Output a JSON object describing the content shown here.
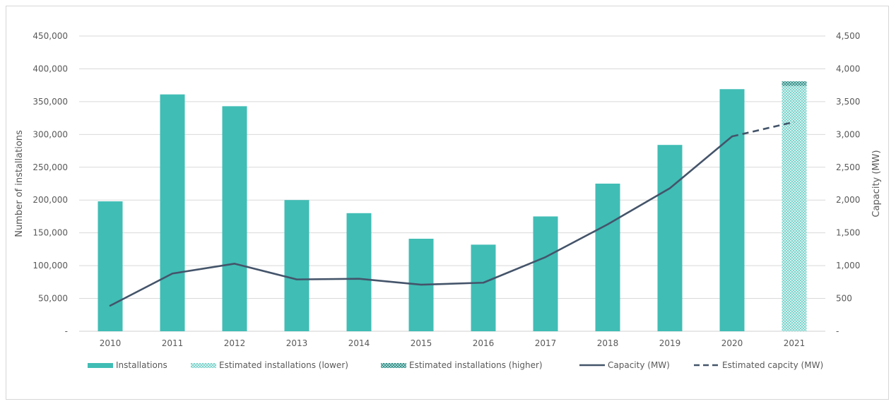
{
  "chart_data": {
    "type": "bar",
    "categories": [
      "2010",
      "2011",
      "2012",
      "2013",
      "2014",
      "2015",
      "2016",
      "2017",
      "2018",
      "2019",
      "2020",
      "2021"
    ],
    "series": [
      {
        "name": "Installations",
        "kind": "bar",
        "axis": "left",
        "color": "#40bdb5",
        "values": [
          198000,
          361000,
          343000,
          200000,
          180000,
          141000,
          132000,
          175000,
          225000,
          284000,
          369000,
          null
        ]
      },
      {
        "name": "Estimated installations (lower)",
        "kind": "bar",
        "axis": "left",
        "pattern": "light-check",
        "color": "#a8e2de",
        "values": [
          null,
          null,
          null,
          null,
          null,
          null,
          null,
          null,
          null,
          null,
          null,
          374000
        ]
      },
      {
        "name": "Estimated installations (higher)",
        "kind": "bar",
        "axis": "left",
        "pattern": "dark-check",
        "color": "#5aa8a2",
        "values": [
          null,
          null,
          null,
          null,
          null,
          null,
          null,
          null,
          null,
          null,
          null,
          381000
        ]
      },
      {
        "name": "Capacity (MW)",
        "kind": "line",
        "axis": "right",
        "color": "#44546a",
        "values": [
          390,
          880,
          1030,
          790,
          800,
          710,
          740,
          1130,
          1630,
          2180,
          2970,
          null
        ]
      },
      {
        "name": "Estimated capcity (MW)",
        "kind": "line-dashed",
        "axis": "right",
        "color": "#44546a",
        "values": [
          null,
          null,
          null,
          null,
          null,
          null,
          null,
          null,
          null,
          null,
          2970,
          3190
        ]
      }
    ],
    "ylabel": "Number of installations",
    "y2label": "Capacity (MW)",
    "ylim": [
      0,
      450000
    ],
    "y2lim": [
      0,
      4500
    ],
    "yticks": [
      "-",
      "50,000",
      "100,000",
      "150,000",
      "200,000",
      "250,000",
      "300,000",
      "350,000",
      "400,000",
      "450,000"
    ],
    "y2ticks": [
      "-",
      "500",
      "1,000",
      "1,500",
      "2,000",
      "2,500",
      "3,000",
      "3,500",
      "4,000",
      "4,500"
    ],
    "grid": true,
    "legend_position": "bottom"
  }
}
